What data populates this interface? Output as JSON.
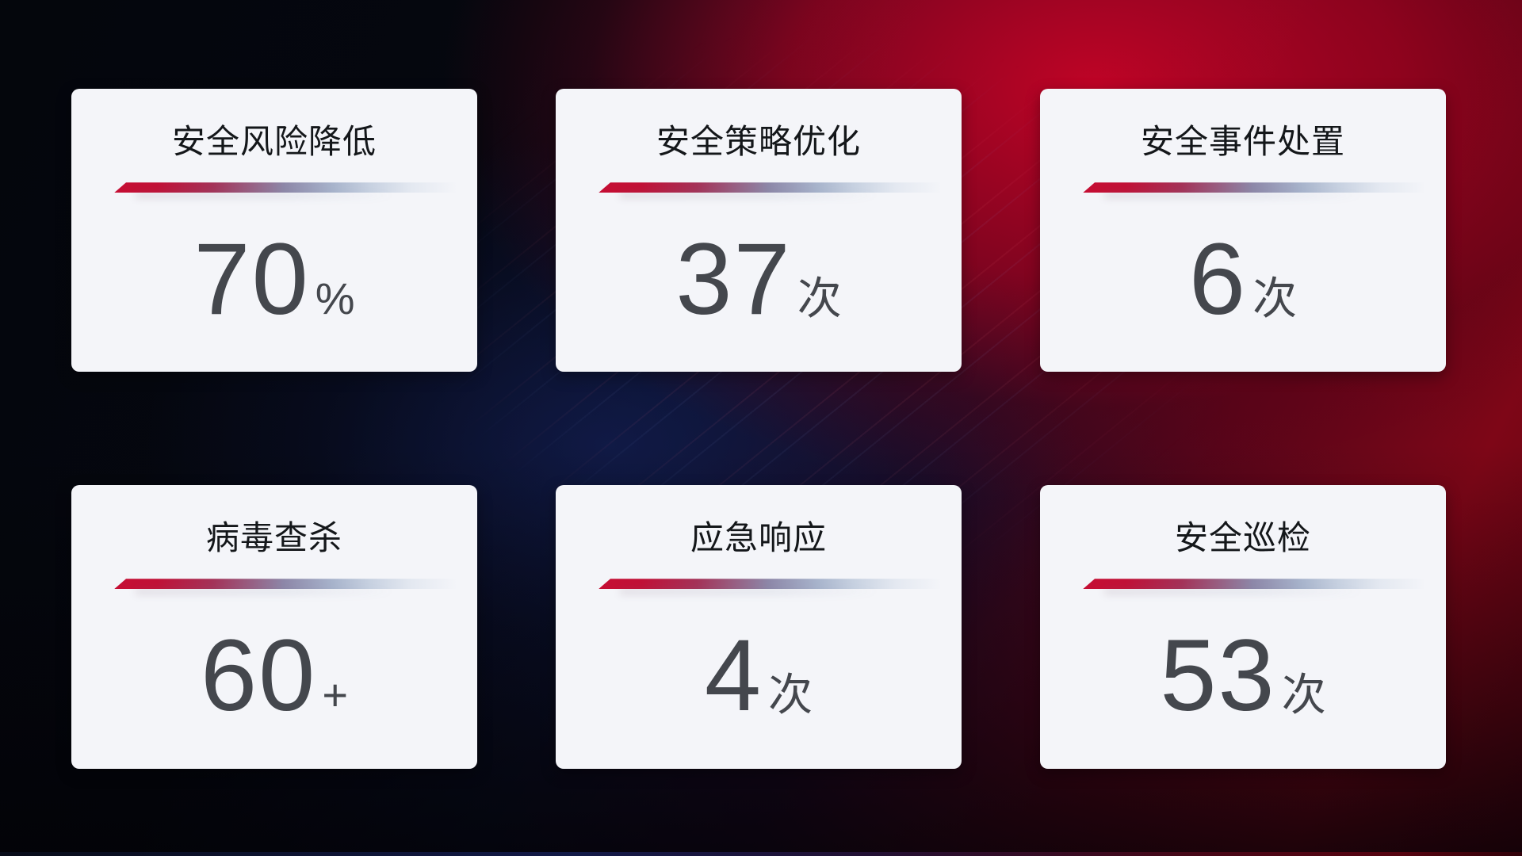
{
  "cards": [
    {
      "title": "安全风险降低",
      "value": "70",
      "unit": "%"
    },
    {
      "title": "安全策略优化",
      "value": "37",
      "unit": "次"
    },
    {
      "title": "安全事件处置",
      "value": "6",
      "unit": "次"
    },
    {
      "title": "病毒查杀",
      "value": "60",
      "unit": "+"
    },
    {
      "title": "应急响应",
      "value": "4",
      "unit": "次"
    },
    {
      "title": "安全巡检",
      "value": "53",
      "unit": "次"
    }
  ],
  "colors": {
    "card_background": "#f4f5f9",
    "title_text": "#14171a",
    "value_text": "#44474d",
    "divider_red": "#c50e33",
    "divider_mid": "#8d87a8",
    "divider_light": "#c6d0e0",
    "background_navy": "#0a0e24",
    "background_red": "#c70326",
    "background_blue_glow": "#162464"
  }
}
